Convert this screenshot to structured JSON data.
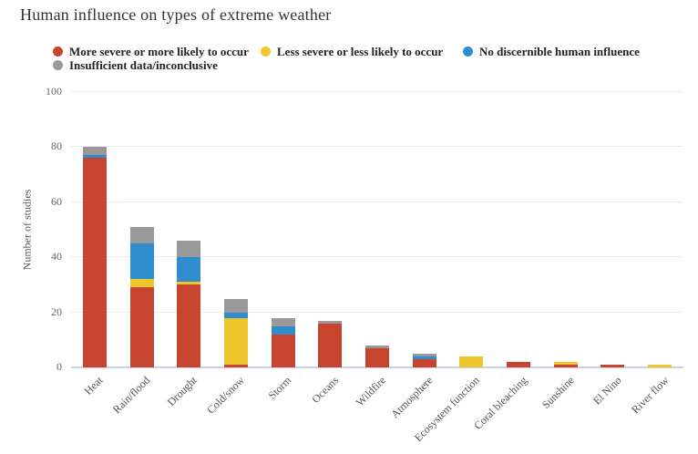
{
  "title": "Human influence on types of extreme weather",
  "legend": {
    "items": [
      {
        "label": "More severe or more likely to occur",
        "color": "#c7452e"
      },
      {
        "label": "Less severe or less likely to occur",
        "color": "#eec72e"
      },
      {
        "label": "No discernible human influence",
        "color": "#2f8ccd"
      },
      {
        "label": "Insufficient data/inconclusive",
        "color": "#999999"
      }
    ]
  },
  "chart_data": {
    "type": "bar",
    "stacked": true,
    "title": "Human influence on types of extreme weather",
    "xlabel": "",
    "ylabel": "Number of studies",
    "ylim": [
      0,
      100
    ],
    "yticks": [
      0,
      20,
      40,
      60,
      80,
      100
    ],
    "grid": true,
    "legend_position": "top",
    "categories": [
      "Heat",
      "Rain/flood",
      "Drought",
      "Cold/snow",
      "Storm",
      "Oceans",
      "Wildfire",
      "Atmosphere",
      "Ecosystem function",
      "Coral bleaching",
      "Sunshine",
      "El Nino",
      "River flow"
    ],
    "series": [
      {
        "name": "More severe or more likely to occur",
        "color": "#c7452e",
        "values": [
          76,
          29,
          30,
          1,
          12,
          16,
          7,
          3,
          0,
          2,
          1,
          1,
          0
        ]
      },
      {
        "name": "Less severe or less likely to occur",
        "color": "#eec72e",
        "values": [
          0,
          3,
          1,
          17,
          0,
          0,
          0,
          0,
          4,
          0,
          1,
          0,
          1
        ]
      },
      {
        "name": "No discernible human influence",
        "color": "#2f8ccd",
        "values": [
          1,
          13,
          9,
          2,
          3,
          0,
          0,
          1,
          0,
          0,
          0,
          0,
          0
        ]
      },
      {
        "name": "Insufficient data/inconclusive",
        "color": "#999999",
        "values": [
          3,
          6,
          6,
          5,
          3,
          1,
          1,
          1,
          0,
          0,
          0,
          0,
          0
        ]
      }
    ],
    "totals": [
      80,
      51,
      46,
      25,
      18,
      17,
      8,
      5,
      4,
      2,
      2,
      1,
      1
    ],
    "colors": {
      "gridline": "#ececec",
      "axis_line": "#c9d3e4",
      "tick_text": "#666666",
      "category_text": "#555555",
      "title_text": "#333333"
    }
  }
}
